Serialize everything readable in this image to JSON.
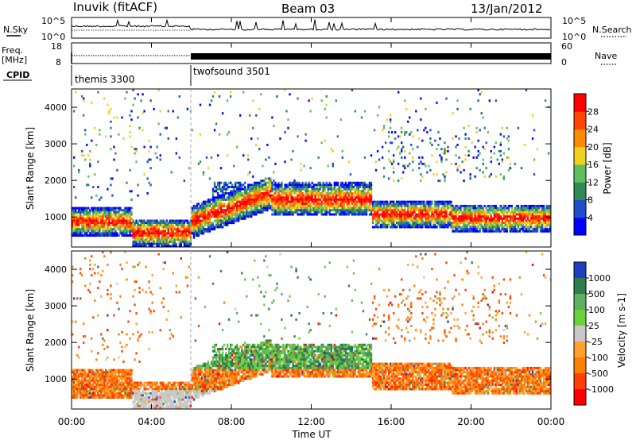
{
  "header": {
    "title": "Inuvik (fitACF)",
    "beam": "Beam 03",
    "date": "13/Jan/2012"
  },
  "noise_panel": {
    "left_label": "N.Sky",
    "right_label": "N.Search",
    "left_ticks": [
      "10^5",
      "10^0"
    ],
    "right_ticks": [
      "10^5",
      "10^0"
    ]
  },
  "freq_panel": {
    "left_label_1": "Freq.",
    "left_label_2": "[MHz]",
    "right_label": "Nave",
    "left_ticks": [
      "18",
      "8"
    ],
    "right_ticks": [
      "60",
      "0"
    ]
  },
  "cpid": {
    "label": "CPID",
    "segments": [
      {
        "name": "themis 3300",
        "start_hour": 0
      },
      {
        "name": "twofsound 3501",
        "start_hour": 6
      }
    ]
  },
  "chart_data": [
    {
      "type": "heatmap",
      "name": "power",
      "ylabel": "Slant Range [km]",
      "xlabel": "",
      "x_ticks": [
        "00:00",
        "04:00",
        "08:00",
        "12:00",
        "16:00",
        "20:00",
        "00:00"
      ],
      "y_ticks": [
        "1000",
        "2000",
        "3000",
        "4000"
      ],
      "xlim_hours": [
        0,
        24
      ],
      "ylim_km": [
        180,
        4500
      ],
      "colorbar": {
        "label": "Power [dB]",
        "ticks": [
          "4",
          "8",
          "12",
          "16",
          "20",
          "24",
          "28"
        ],
        "colors": [
          "#0000ff",
          "#1f4fc8",
          "#2e8b57",
          "#5fbf5f",
          "#f0d020",
          "#ff8c00",
          "#ff4500",
          "#ff0000"
        ]
      }
    },
    {
      "type": "heatmap",
      "name": "velocity",
      "ylabel": "Slant Range [km]",
      "xlabel": "Time UT",
      "x_ticks": [
        "00:00",
        "04:00",
        "08:00",
        "12:00",
        "16:00",
        "20:00",
        "00:00"
      ],
      "y_ticks": [
        "1000",
        "2000",
        "3000",
        "4000"
      ],
      "xlim_hours": [
        0,
        24
      ],
      "ylim_km": [
        180,
        4500
      ],
      "colorbar": {
        "label": "Velocity [m s-1]",
        "ticks": [
          "1000",
          "500",
          "100",
          "25",
          "-25",
          "-100",
          "-500",
          "-1000"
        ],
        "colors": [
          "#1f3fbf",
          "#2e7d4f",
          "#5fb05f",
          "#6ad23a",
          "#c8c8c8",
          "#ffa030",
          "#ff7f00",
          "#ff4000",
          "#ff0000"
        ]
      }
    }
  ]
}
